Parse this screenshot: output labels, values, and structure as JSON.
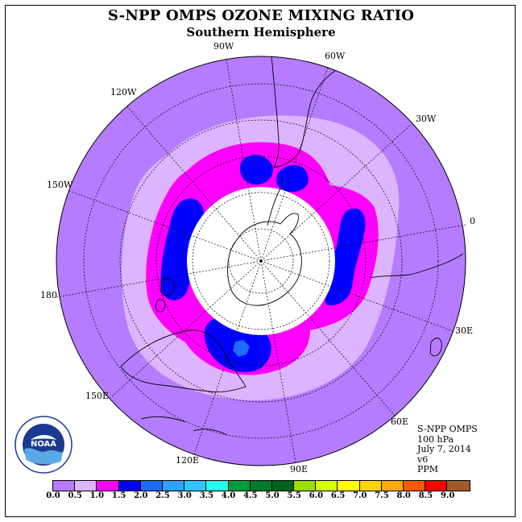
{
  "title": "S-NPP OMPS OZONE MIXING RATIO",
  "subtitle": "Southern Hemisphere",
  "longitude_labels": [
    "90W",
    "60W",
    "30W",
    "0",
    "30E",
    "60E",
    "90E",
    "120E",
    "150E",
    "180",
    "150W",
    "120W"
  ],
  "info": {
    "instrument": "S-NPP OMPS",
    "level": "100 hPa",
    "date": "July 7, 2014",
    "version": "v6",
    "units": "PPM"
  },
  "logo": {
    "text": "NOAA",
    "icon": "noaa-logo"
  },
  "colorbar": {
    "ticks": [
      "0.0",
      "0.5",
      "1.0",
      "1.5",
      "2.0",
      "2.5",
      "3.0",
      "3.5",
      "4.0",
      "4.5",
      "5.0",
      "5.5",
      "6.0",
      "6.5",
      "7.0",
      "7.5",
      "8.0",
      "8.5",
      "9.0"
    ],
    "colors": [
      "#b57cff",
      "#ddb4ff",
      "#ff00ff",
      "#0000ff",
      "#1e6bff",
      "#2fa0ff",
      "#2fc6ff",
      "#22ffee",
      "#009a3c",
      "#007a2c",
      "#00641e",
      "#9bdd00",
      "#d8ff00",
      "#ffff00",
      "#ffd400",
      "#ffaa00",
      "#ff5a00",
      "#ff0000",
      "#a05a2c"
    ]
  },
  "map_data": {
    "projection": "south-polar-stereographic",
    "field": "ozone mixing ratio",
    "regions": [
      {
        "range": "0.0-0.5",
        "description": "outer background"
      },
      {
        "range": "0.5-1.0",
        "description": "ring around vortex"
      },
      {
        "range": "1.0-1.5",
        "description": "vortex edge"
      },
      {
        "range": "1.5-2.0",
        "description": "pockets near Antarctic Peninsula, Indian Ocean sector, Pacific sector"
      },
      {
        "range": "2.0-2.5",
        "description": "small pocket south of Australia"
      }
    ],
    "no_data_cap": "polar night, no data"
  }
}
